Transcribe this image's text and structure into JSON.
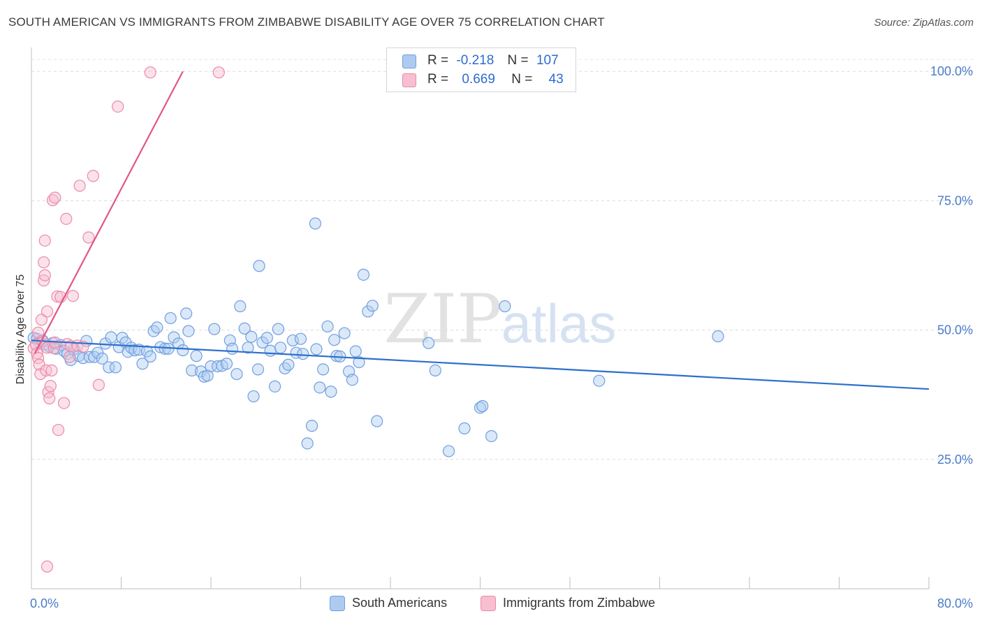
{
  "header": {
    "title": "SOUTH AMERICAN VS IMMIGRANTS FROM ZIMBABWE DISABILITY AGE OVER 75 CORRELATION CHART",
    "source": "Source: ZipAtlas.com"
  },
  "watermark": {
    "zip": "ZIP",
    "atlas": "atlas"
  },
  "legend": {
    "r_label": "R =",
    "n_label": "N =",
    "rows": [
      {
        "r": "-0.218",
        "n": "107",
        "color": "#aecbef",
        "border": "#6f9fe0"
      },
      {
        "r": "0.669",
        "n": "43",
        "color": "#f7bfd0",
        "border": "#ec89a8"
      }
    ]
  },
  "bottom_legend": [
    {
      "label": "South Americans",
      "color": "#aecbef",
      "border": "#6f9fe0"
    },
    {
      "label": "Immigrants from Zimbabwe",
      "color": "#f7bfd0",
      "border": "#ec89a8"
    }
  ],
  "chart_data": {
    "type": "scatter",
    "ylabel": "Disability Age Over 75",
    "xlim": [
      0,
      80
    ],
    "ylim": [
      0,
      103
    ],
    "x_tick_labels": [
      {
        "v": 0,
        "label": "0.0%"
      },
      {
        "v": 80,
        "label": "80.0%"
      }
    ],
    "y_tick_labels": [
      {
        "v": 25,
        "label": "25.0%"
      },
      {
        "v": 50,
        "label": "50.0%"
      },
      {
        "v": 75,
        "label": "75.0%"
      },
      {
        "v": 100,
        "label": "100.0%"
      }
    ],
    "x_minor_ticks": [
      8,
      16,
      24,
      32,
      40,
      48,
      56,
      64,
      72,
      80
    ],
    "grid": true,
    "series": [
      {
        "name": "South Americans",
        "color": "#6f9fe0",
        "fill": "rgba(174,203,239,0.45)",
        "trend": {
          "x": [
            0,
            80
          ],
          "y": [
            48.0,
            38.6
          ],
          "color": "#2d6fcc"
        },
        "points": [
          [
            0.2,
            48.5
          ],
          [
            0.5,
            48.3
          ],
          [
            0.7,
            47.6
          ],
          [
            1.0,
            48.0
          ],
          [
            1.3,
            47.2
          ],
          [
            1.6,
            46.8
          ],
          [
            1.9,
            47.5
          ],
          [
            2.2,
            46.4
          ],
          [
            2.6,
            47.1
          ],
          [
            2.9,
            46.0
          ],
          [
            3.2,
            45.4
          ],
          [
            3.5,
            44.2
          ],
          [
            3.8,
            46.3
          ],
          [
            4.2,
            45.0
          ],
          [
            4.6,
            44.6
          ],
          [
            4.9,
            47.9
          ],
          [
            5.2,
            44.8
          ],
          [
            5.6,
            44.8
          ],
          [
            5.9,
            45.6
          ],
          [
            6.3,
            44.5
          ],
          [
            6.6,
            47.4
          ],
          [
            6.9,
            42.8
          ],
          [
            7.1,
            48.6
          ],
          [
            7.5,
            42.8
          ],
          [
            7.8,
            46.7
          ],
          [
            8.1,
            48.5
          ],
          [
            8.4,
            47.6
          ],
          [
            8.6,
            45.8
          ],
          [
            8.9,
            46.6
          ],
          [
            9.2,
            46.1
          ],
          [
            9.6,
            46.2
          ],
          [
            9.9,
            43.5
          ],
          [
            10.3,
            45.9
          ],
          [
            10.6,
            44.9
          ],
          [
            10.9,
            49.8
          ],
          [
            11.2,
            50.5
          ],
          [
            11.5,
            46.7
          ],
          [
            11.9,
            46.4
          ],
          [
            12.2,
            46.4
          ],
          [
            12.4,
            52.3
          ],
          [
            12.7,
            48.6
          ],
          [
            13.1,
            47.4
          ],
          [
            13.5,
            46.1
          ],
          [
            13.8,
            53.2
          ],
          [
            14.0,
            49.8
          ],
          [
            14.3,
            42.2
          ],
          [
            14.7,
            45.0
          ],
          [
            15.1,
            42.0
          ],
          [
            15.4,
            41.0
          ],
          [
            15.7,
            41.2
          ],
          [
            16.0,
            43.0
          ],
          [
            16.3,
            50.2
          ],
          [
            16.6,
            43.0
          ],
          [
            17.0,
            43.1
          ],
          [
            17.4,
            43.5
          ],
          [
            17.7,
            48.0
          ],
          [
            17.9,
            46.4
          ],
          [
            18.3,
            41.5
          ],
          [
            18.6,
            54.6
          ],
          [
            19.0,
            50.3
          ],
          [
            19.3,
            46.6
          ],
          [
            19.6,
            48.7
          ],
          [
            19.8,
            37.2
          ],
          [
            20.2,
            42.4
          ],
          [
            20.6,
            47.6
          ],
          [
            21.0,
            48.5
          ],
          [
            21.3,
            46.0
          ],
          [
            21.7,
            39.1
          ],
          [
            22.0,
            50.2
          ],
          [
            22.2,
            46.6
          ],
          [
            22.6,
            42.6
          ],
          [
            22.9,
            43.3
          ],
          [
            23.3,
            48.0
          ],
          [
            23.6,
            45.6
          ],
          [
            24.0,
            48.3
          ],
          [
            24.2,
            45.4
          ],
          [
            24.6,
            28.1
          ],
          [
            25.0,
            31.5
          ],
          [
            25.4,
            46.3
          ],
          [
            25.7,
            38.9
          ],
          [
            26.0,
            42.4
          ],
          [
            26.4,
            50.7
          ],
          [
            26.7,
            38.1
          ],
          [
            27.0,
            48.1
          ],
          [
            27.2,
            45.0
          ],
          [
            27.5,
            44.9
          ],
          [
            27.9,
            49.4
          ],
          [
            28.3,
            42.0
          ],
          [
            28.6,
            40.4
          ],
          [
            28.9,
            45.9
          ],
          [
            29.2,
            43.8
          ],
          [
            29.6,
            60.7
          ],
          [
            30.0,
            53.6
          ],
          [
            30.4,
            54.7
          ],
          [
            30.8,
            32.4
          ],
          [
            25.3,
            70.6
          ],
          [
            20.3,
            62.4
          ],
          [
            35.4,
            47.5
          ],
          [
            36.0,
            42.2
          ],
          [
            37.2,
            26.6
          ],
          [
            38.6,
            31.0
          ],
          [
            40.0,
            35.0
          ],
          [
            40.2,
            35.3
          ],
          [
            41.0,
            29.5
          ],
          [
            42.2,
            54.6
          ],
          [
            61.2,
            48.8
          ],
          [
            50.6,
            40.2
          ]
        ]
      },
      {
        "name": "Immigrants from Zimbabwe",
        "color": "#ec89a8",
        "fill": "rgba(247,191,208,0.45)",
        "trend": {
          "x": [
            0.3,
            13.5
          ],
          "y": [
            45.5,
            100
          ],
          "color": "#e2568a"
        },
        "points": [
          [
            0.2,
            46.5
          ],
          [
            0.4,
            47.2
          ],
          [
            0.5,
            45.5
          ],
          [
            0.6,
            44.6
          ],
          [
            0.7,
            43.3
          ],
          [
            0.8,
            41.5
          ],
          [
            0.9,
            52.0
          ],
          [
            1.0,
            47.8
          ],
          [
            1.1,
            63.1
          ],
          [
            1.1,
            59.6
          ],
          [
            1.2,
            60.6
          ],
          [
            1.2,
            67.3
          ],
          [
            1.3,
            42.2
          ],
          [
            1.4,
            46.6
          ],
          [
            1.4,
            53.6
          ],
          [
            1.5,
            38.0
          ],
          [
            1.6,
            36.8
          ],
          [
            1.7,
            39.2
          ],
          [
            1.8,
            42.2
          ],
          [
            1.9,
            75.1
          ],
          [
            2.0,
            46.5
          ],
          [
            2.1,
            47.6
          ],
          [
            2.1,
            75.6
          ],
          [
            2.3,
            56.5
          ],
          [
            2.4,
            30.7
          ],
          [
            2.6,
            56.4
          ],
          [
            2.9,
            35.9
          ],
          [
            3.1,
            71.5
          ],
          [
            3.2,
            47.3
          ],
          [
            3.4,
            44.8
          ],
          [
            3.5,
            46.9
          ],
          [
            3.7,
            56.6
          ],
          [
            4.1,
            47.0
          ],
          [
            4.3,
            77.9
          ],
          [
            4.6,
            46.8
          ],
          [
            5.1,
            67.9
          ],
          [
            5.5,
            79.8
          ],
          [
            6.0,
            39.4
          ],
          [
            7.7,
            93.2
          ],
          [
            10.6,
            99.8
          ],
          [
            16.7,
            99.8
          ],
          [
            1.4,
            4.3
          ],
          [
            0.6,
            49.5
          ]
        ]
      }
    ]
  }
}
